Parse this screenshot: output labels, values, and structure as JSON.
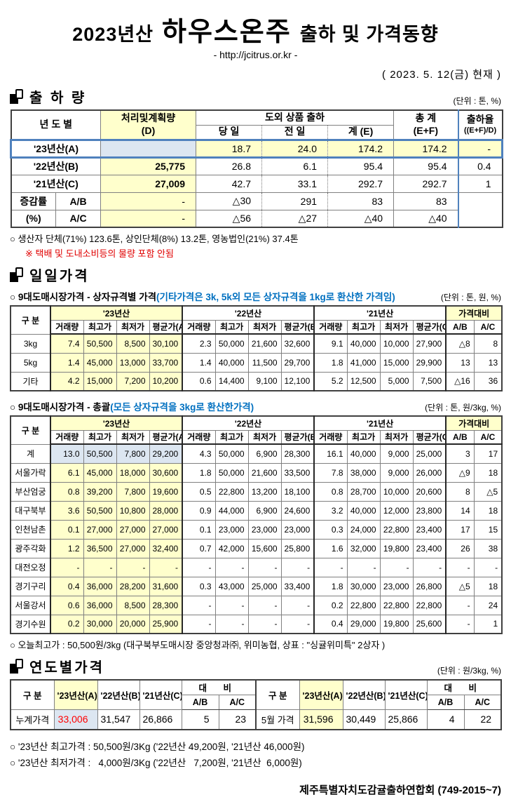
{
  "header": {
    "title_prefix": "2023년산",
    "title_main": "하우스온주",
    "title_suffix": "출하 및 가격동향",
    "url": "- http://jcitrus.or.kr -",
    "date": "( 2023. 5. 12(금) 현재 )"
  },
  "colors": {
    "highlight_yellow": "#ffffcc",
    "highlight_blue": "#dce6f1",
    "accent_blue_border": "#4f81bd",
    "note_blue": "#0070c0",
    "alert_red": "#ff0000"
  },
  "shipment": {
    "section_title": "출 하 량",
    "unit": "(단위 : 톤, %)",
    "headers": {
      "col_year": "년 도 별",
      "col_plan": "처리및계획량",
      "col_plan_sub": "(D)",
      "col_group": "도외 상품 출하",
      "col_today": "당 일",
      "col_prev": "전 일",
      "col_sum": "계 (E)",
      "col_total": "총    계",
      "col_total_sub": "(E+F)",
      "col_rate": "출하율",
      "col_rate_sub": "((E+F)/D)"
    },
    "rows": [
      {
        "label": "'23년산(A)",
        "cells": [
          "",
          "18.7",
          "24.0",
          "174.2",
          "174.2",
          "-"
        ]
      },
      {
        "label": "'22년산(B)",
        "cells": [
          "25,775",
          "26.8",
          "6.1",
          "95.4",
          "95.4",
          "0.4"
        ]
      },
      {
        "label": "'21년산(C)",
        "cells": [
          "27,009",
          "42.7",
          "33.1",
          "292.7",
          "292.7",
          "1"
        ]
      }
    ],
    "change_label1": "증감률",
    "change_label2": "(%)",
    "change_rows": [
      {
        "label": "A/B",
        "cells": [
          "-",
          "△30",
          "291",
          "83",
          "83"
        ]
      },
      {
        "label": "A/C",
        "cells": [
          "-",
          "△56",
          "△27",
          "△40",
          "△40"
        ]
      }
    ],
    "note1": "○ 생산자 단체(71%) 123.6톤,  상인단체(8%) 13.2톤, 영농법인(21%) 37.4톤",
    "note2": "※ 택배 및 도내소비등의 물량 포함 안됨"
  },
  "daily": {
    "section_title": "일일가격",
    "sub1_title": "○ 9대도매시장가격 - 상자규격별 가격",
    "sub1_note": "(기타가격은 3k, 5k외 모든 상자규격을 1kg로 환산한 가격임)",
    "sub1_unit": "(단위 : 톤,  원, %)",
    "table_headers": {
      "col_group": "구   분",
      "y23": "'23년산",
      "y22": "'22년산",
      "y21": "'21년산",
      "compare": "가격대비",
      "sub": [
        "거래량",
        "최고가",
        "최저가",
        "평균가(A)",
        "거래량",
        "최고가",
        "최저가",
        "평균가(B)",
        "거래량",
        "최고가",
        "최저가",
        "평균가(C)",
        "A/B",
        "A/C"
      ]
    },
    "by_size_rows": [
      {
        "label": "3kg",
        "cells": [
          "7.4",
          "50,500",
          "8,500",
          "30,100",
          "2.3",
          "50,000",
          "21,600",
          "32,600",
          "9.1",
          "40,000",
          "10,000",
          "27,900",
          "△8",
          "8"
        ]
      },
      {
        "label": "5kg",
        "cells": [
          "1.4",
          "45,000",
          "13,000",
          "33,700",
          "1.4",
          "40,000",
          "11,500",
          "29,700",
          "1.8",
          "41,000",
          "15,000",
          "29,900",
          "13",
          "13"
        ]
      },
      {
        "label": "기타",
        "cells": [
          "4.2",
          "15,000",
          "7,200",
          "10,200",
          "0.6",
          "14,400",
          "9,100",
          "12,100",
          "5.2",
          "12,500",
          "5,000",
          "7,500",
          "△16",
          "36"
        ]
      }
    ],
    "sub2_title": "○ 9대도매시장가격 - 총괄",
    "sub2_note": "(모든 상자규격을 3kg로 환산한가격)",
    "sub2_unit": "(단위 : 톤, 원/3kg, %)",
    "total_rows": [
      {
        "label": "계",
        "highlight": true,
        "cells": [
          "13.0",
          "50,500",
          "7,800",
          "29,200",
          "4.3",
          "50,000",
          "6,900",
          "28,300",
          "16.1",
          "40,000",
          "9,000",
          "25,000",
          "3",
          "17"
        ]
      },
      {
        "label": "서울가락",
        "cells": [
          "6.1",
          "45,000",
          "18,000",
          "30,600",
          "1.8",
          "50,000",
          "21,600",
          "33,500",
          "7.8",
          "38,000",
          "9,000",
          "26,000",
          "△9",
          "18"
        ]
      },
      {
        "label": "부산엄궁",
        "cells": [
          "0.8",
          "39,200",
          "7,800",
          "19,600",
          "0.5",
          "22,800",
          "13,200",
          "18,100",
          "0.8",
          "28,700",
          "10,000",
          "20,600",
          "8",
          "△5"
        ]
      },
      {
        "label": "대구북부",
        "cells": [
          "3.6",
          "50,500",
          "10,800",
          "28,000",
          "0.9",
          "44,000",
          "6,900",
          "24,600",
          "3.2",
          "40,000",
          "12,000",
          "23,800",
          "14",
          "18"
        ]
      },
      {
        "label": "인천남촌",
        "cells": [
          "0.1",
          "27,000",
          "27,000",
          "27,000",
          "0.1",
          "23,000",
          "23,000",
          "23,000",
          "0.3",
          "24,000",
          "22,800",
          "23,400",
          "17",
          "15"
        ]
      },
      {
        "label": "광주각화",
        "cells": [
          "1.2",
          "36,500",
          "27,000",
          "32,400",
          "0.7",
          "42,000",
          "15,600",
          "25,800",
          "1.6",
          "32,000",
          "19,800",
          "23,400",
          "26",
          "38"
        ]
      },
      {
        "label": "대전오정",
        "cells": [
          "-",
          "-",
          "-",
          "-",
          "-",
          "-",
          "-",
          "-",
          "-",
          "-",
          "-",
          "-",
          "-",
          "-"
        ]
      },
      {
        "label": "경기구리",
        "cells": [
          "0.4",
          "36,000",
          "28,200",
          "31,600",
          "0.3",
          "43,000",
          "25,000",
          "33,400",
          "1.8",
          "30,000",
          "23,000",
          "26,800",
          "△5",
          "18"
        ]
      },
      {
        "label": "서울강서",
        "cells": [
          "0.6",
          "36,000",
          "8,500",
          "28,300",
          "-",
          "-",
          "-",
          "-",
          "0.2",
          "22,800",
          "22,800",
          "22,800",
          "-",
          "24"
        ]
      },
      {
        "label": "경기수원",
        "cells": [
          "0.2",
          "30,000",
          "20,000",
          "25,900",
          "-",
          "-",
          "-",
          "-",
          "0.4",
          "29,000",
          "19,800",
          "25,600",
          "-",
          "1"
        ]
      }
    ],
    "today_note": "○ 오늘최고가 : 50,500원/3kg (대구북부도매시장 중앙청과㈜, 위미농협, 상표 : \"싱귤위미특\" 2상자 )"
  },
  "yearly": {
    "section_title": "연도별가격",
    "unit": "(단위 : 원/3kg, %)",
    "headers": {
      "col_group": "구    분",
      "a": "'23년산(A)",
      "b": "'22년산(B)",
      "c": "'21년산(C)",
      "vs": "대  비",
      "ab": "A/B",
      "ac": "A/C"
    },
    "left_row": {
      "label": "누계가격",
      "a": "33,006",
      "b": "31,547",
      "c": "26,866",
      "ab": "5",
      "ac": "23"
    },
    "right_row": {
      "label": "5월 가격",
      "a": "31,596",
      "b": "30,449",
      "c": "25,866",
      "ab": "4",
      "ac": "22"
    }
  },
  "footer": {
    "note_high": "○ '23년산 최고가격 : 50,500원/3Kg ('22년산 49,200원, '21년산 46,000원)",
    "note_low": "○ '23년산 최저가격 :   4,000원/3Kg ('22년산   7,200원, '21년산  6,000원)",
    "org": "제주특별자치도감귤출하연합회 (749-2015~7)"
  }
}
